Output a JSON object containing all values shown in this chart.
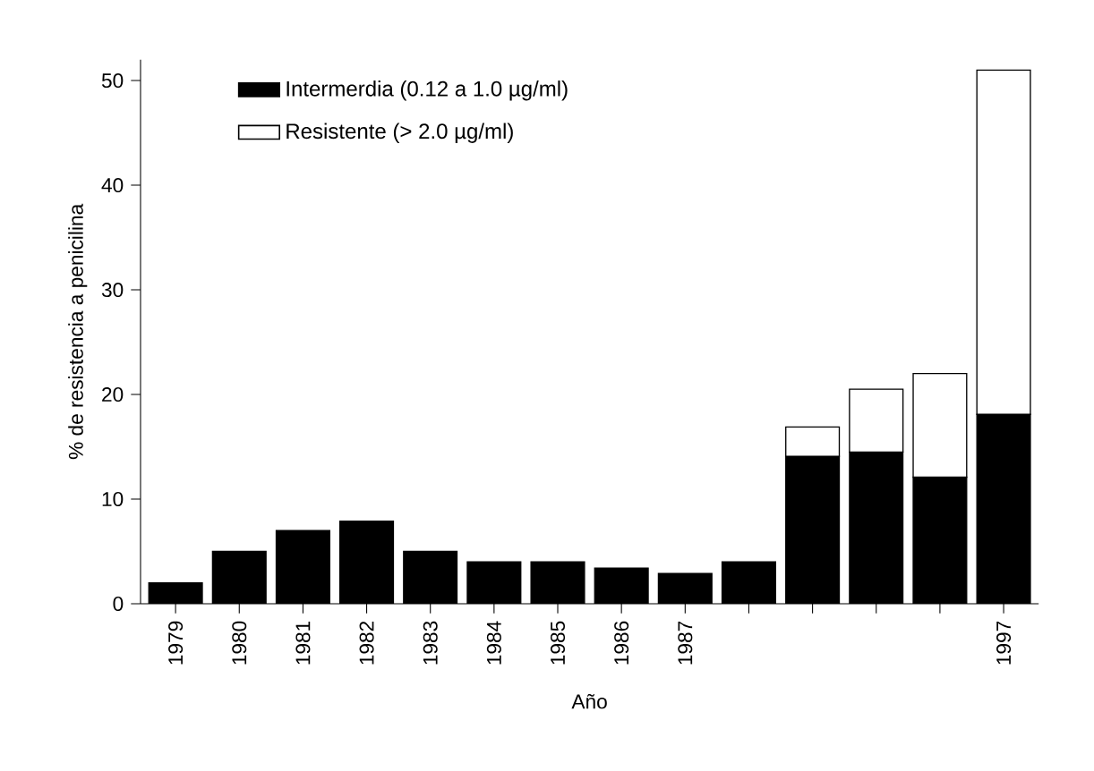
{
  "chart_data": {
    "type": "bar",
    "stacked": true,
    "xlabel": "Año",
    "ylabel": "% de resistencia a penicilina",
    "categories": [
      "1979",
      "1980",
      "1981",
      "1982",
      "1983",
      "1984",
      "1985",
      "1986",
      "1987",
      null,
      null,
      null,
      null,
      "1997"
    ],
    "series": [
      {
        "name": "Intermerdia (0.12 a 1.0 µg/ml)",
        "color": "#000000",
        "values": [
          2,
          5,
          7,
          7.9,
          5,
          4,
          4,
          3.4,
          2.9,
          4,
          14.1,
          14.5,
          12.1,
          18.1
        ]
      },
      {
        "name": "Resistente (> 2.0 µg/ml)",
        "color": "#ffffff",
        "values": [
          null,
          null,
          null,
          null,
          null,
          null,
          null,
          null,
          null,
          null,
          2.8,
          6,
          9.9,
          32.9
        ]
      }
    ],
    "ylim": [
      0,
      52
    ],
    "yticks": [
      0,
      10,
      20,
      30,
      40,
      50
    ],
    "grid": false,
    "legend": "top left"
  }
}
